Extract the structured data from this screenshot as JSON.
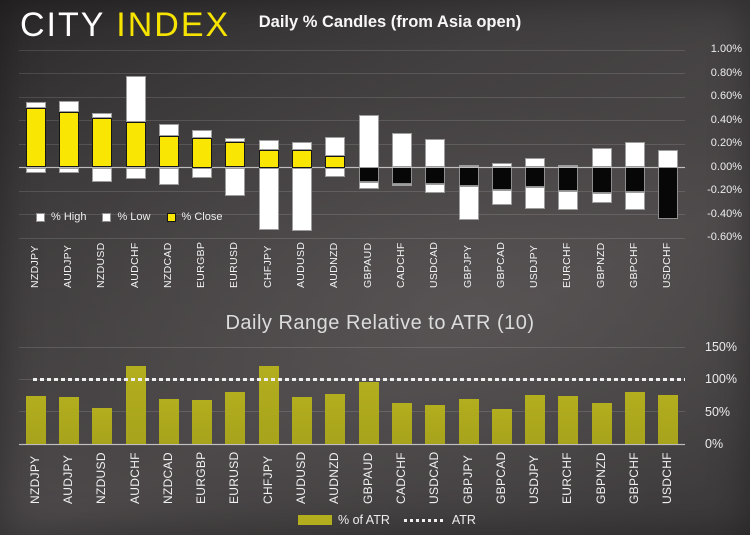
{
  "header": {
    "logo_city": "CITY",
    "logo_index": "INDEX"
  },
  "colors": {
    "accent_yellow": "#F6E400",
    "candle_close_fill": "#F9E703",
    "candle_white": "#FFFFFF",
    "candle_black": "#070707",
    "atr_bar_olive": "#B3AE1E",
    "text_light": "#EDEDED"
  },
  "chart_data": [
    {
      "type": "bar",
      "subtype": "daily-percent-candles",
      "title": "Daily % Candles (from Asia open)",
      "categories": [
        "NZDJPY",
        "AUDJPY",
        "NZDUSD",
        "AUDCHF",
        "NZDCAD",
        "EURGBP",
        "EURUSD",
        "CHFJPY",
        "AUDUSD",
        "AUDNZD",
        "GBPAUD",
        "CADCHF",
        "USDCAD",
        "GBPJPY",
        "GBPCAD",
        "USDJPY",
        "EURCHF",
        "GBPNZD",
        "GBPCHF",
        "USDCHF"
      ],
      "series": [
        {
          "name": "% High",
          "values": [
            0.56,
            0.57,
            0.46,
            0.78,
            0.37,
            0.32,
            0.25,
            0.23,
            0.22,
            0.26,
            0.45,
            0.29,
            0.24,
            0.02,
            0.04,
            0.08,
            0.02,
            0.17,
            0.22,
            0.15
          ]
        },
        {
          "name": "% Low",
          "values": [
            -0.05,
            -0.05,
            -0.12,
            -0.1,
            -0.15,
            -0.09,
            -0.24,
            -0.53,
            -0.54,
            -0.08,
            -0.18,
            -0.16,
            -0.22,
            -0.45,
            -0.32,
            -0.35,
            -0.36,
            -0.3,
            -0.36,
            -0.44
          ]
        },
        {
          "name": "% Close",
          "values": [
            0.51,
            0.47,
            0.42,
            0.39,
            0.27,
            0.25,
            0.22,
            0.15,
            0.15,
            0.1,
            -0.12,
            -0.14,
            -0.14,
            -0.16,
            -0.19,
            -0.17,
            -0.2,
            -0.22,
            -0.21,
            -0.44
          ]
        }
      ],
      "ylabel": "",
      "ylim": [
        -0.6,
        1.0
      ],
      "yticks": [
        "1.00%",
        "0.80%",
        "0.60%",
        "0.40%",
        "0.20%",
        "0.00%",
        "-0.20%",
        "-0.40%",
        "-0.60%"
      ],
      "legend": [
        "% High",
        "% Low",
        "% Close"
      ],
      "legend_position": "bottom-left",
      "grid": true
    },
    {
      "type": "bar",
      "subtype": "percent-of-atr",
      "title": "Daily Range Relative to ATR (10)",
      "categories": [
        "NZDJPY",
        "AUDJPY",
        "NZDUSD",
        "AUDCHF",
        "NZDCAD",
        "EURGBP",
        "EURUSD",
        "CHFJPY",
        "AUDUSD",
        "AUDNZD",
        "GBPAUD",
        "CADCHF",
        "USDCAD",
        "GBPJPY",
        "GBPCAD",
        "USDJPY",
        "EURCHF",
        "GBPNZD",
        "GBPCHF",
        "USDCHF"
      ],
      "values": [
        74,
        72,
        55,
        121,
        69,
        68,
        80,
        121,
        72,
        77,
        96,
        64,
        61,
        70,
        54,
        76,
        75,
        64,
        80,
        76
      ],
      "reference_line": {
        "label": "ATR",
        "value": 100,
        "style": "dotted"
      },
      "ylim": [
        0,
        150
      ],
      "yticks": [
        "150%",
        "100%",
        "50%",
        "0%"
      ],
      "legend": [
        "% of ATR",
        "ATR"
      ],
      "legend_position": "bottom-center",
      "grid": true
    }
  ]
}
